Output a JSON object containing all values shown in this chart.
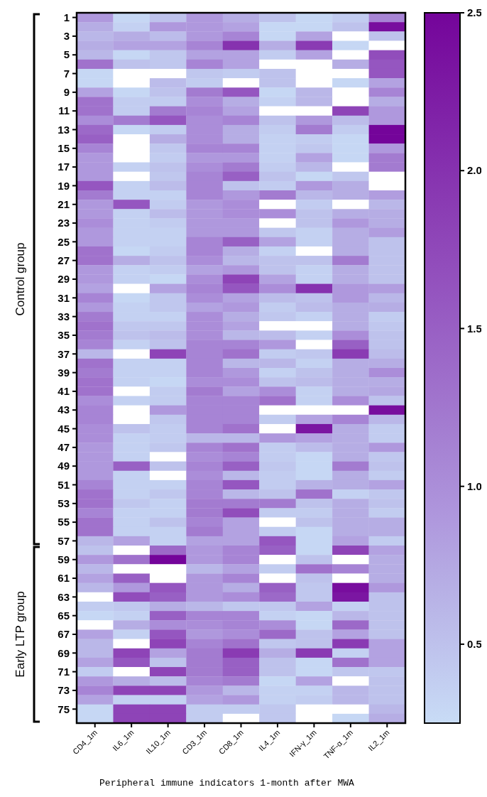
{
  "chart_data": {
    "type": "heatmap",
    "xlabel": "Peripheral immune indicators 1-month after MWA",
    "categories": [
      "CD4_1m",
      "IL6_1m",
      "IL10_1m",
      "CD3_1m",
      "CD8_1m",
      "IL4_1m",
      "IFN-γ_1m",
      "TNF-α_1m",
      "IL2_1m"
    ],
    "y_categories": [
      "1",
      null,
      "3",
      null,
      "5",
      null,
      "7",
      null,
      "9",
      null,
      "11",
      null,
      "13",
      null,
      "15",
      null,
      "17",
      null,
      "19",
      null,
      "21",
      null,
      "23",
      null,
      "25",
      null,
      "27",
      null,
      "29",
      null,
      "31",
      null,
      "33",
      null,
      "35",
      null,
      "37",
      null,
      "39",
      null,
      "41",
      null,
      "43",
      null,
      "45",
      null,
      "47",
      null,
      "49",
      null,
      "51",
      null,
      "53",
      null,
      "55",
      null,
      "57",
      null,
      "59",
      null,
      "61",
      null,
      "63",
      null,
      "65",
      null,
      "67",
      null,
      "69",
      null,
      "71",
      null,
      "73",
      null,
      "75",
      null
    ],
    "cells": [
      [
        0.9,
        0.3,
        0.5,
        0.9,
        0.7,
        0.5,
        0.3,
        0.4,
        1.1
      ],
      [
        0.7,
        0.35,
        0.9,
        0.9,
        0.8,
        0.3,
        0.3,
        0.5,
        2.4
      ],
      [
        0.6,
        0.7,
        0.55,
        0.9,
        1.1,
        0.3,
        0.8,
        null,
        0.5
      ],
      [
        0.7,
        0.8,
        0.8,
        1.1,
        2.0,
        0.7,
        1.9,
        0.3,
        null
      ],
      [
        0.6,
        0.3,
        0.45,
        0.8,
        0.8,
        0.4,
        0.8,
        null,
        1.7
      ],
      [
        1.3,
        0.5,
        0.45,
        1.1,
        0.8,
        null,
        null,
        0.7,
        1.6
      ],
      [
        0.3,
        null,
        null,
        0.45,
        0.4,
        0.5,
        null,
        null,
        1.6
      ],
      [
        0.3,
        null,
        0.55,
        0.4,
        null,
        0.5,
        null,
        0.3,
        0.8
      ],
      [
        0.8,
        0.3,
        0.5,
        1.2,
        1.6,
        0.3,
        0.6,
        null,
        1.1
      ],
      [
        1.3,
        0.4,
        0.4,
        1.0,
        0.7,
        0.35,
        0.6,
        null,
        0.7
      ],
      [
        1.3,
        0.4,
        1.2,
        1.1,
        0.8,
        null,
        null,
        1.8,
        0.9
      ],
      [
        1.0,
        1.2,
        1.6,
        1.0,
        1.1,
        0.5,
        0.9,
        0.55,
        0.9
      ],
      [
        1.4,
        0.3,
        0.4,
        1.0,
        0.7,
        0.4,
        1.2,
        0.4,
        2.5
      ],
      [
        1.5,
        null,
        0.7,
        1.0,
        0.7,
        0.35,
        0.4,
        0.3,
        2.5
      ],
      [
        1.1,
        null,
        0.45,
        1.1,
        1.1,
        0.35,
        0.45,
        0.3,
        0.9
      ],
      [
        0.9,
        null,
        0.4,
        0.9,
        0.9,
        0.35,
        0.8,
        0.3,
        1.2
      ],
      [
        0.9,
        0.35,
        0.5,
        1.0,
        1.2,
        0.4,
        0.6,
        null,
        1.2
      ],
      [
        0.9,
        null,
        0.45,
        1.1,
        1.5,
        0.5,
        0.3,
        0.45,
        null
      ],
      [
        1.6,
        0.35,
        0.55,
        1.1,
        0.5,
        0.4,
        0.9,
        0.7,
        null
      ],
      [
        1.2,
        0.35,
        0.35,
        1.1,
        0.9,
        1.2,
        0.6,
        0.7,
        0.85
      ],
      [
        0.9,
        1.6,
        0.4,
        0.9,
        1.0,
        null,
        0.4,
        null,
        0.6
      ],
      [
        0.9,
        0.35,
        0.55,
        0.9,
        1.0,
        1.0,
        0.5,
        0.7,
        0.7
      ],
      [
        1.0,
        0.35,
        0.4,
        0.9,
        0.9,
        null,
        0.5,
        0.9,
        0.7
      ],
      [
        0.9,
        0.35,
        0.35,
        0.9,
        0.9,
        0.45,
        0.35,
        0.7,
        0.85
      ],
      [
        0.9,
        0.35,
        0.35,
        1.1,
        1.5,
        0.8,
        0.35,
        0.7,
        0.5
      ],
      [
        1.3,
        0.3,
        0.4,
        1.1,
        0.7,
        0.35,
        null,
        0.7,
        0.5
      ],
      [
        1.3,
        0.7,
        0.5,
        1.0,
        0.6,
        0.5,
        0.5,
        1.2,
        0.5
      ],
      [
        0.9,
        0.35,
        0.4,
        0.8,
        0.9,
        0.5,
        0.35,
        0.7,
        0.5
      ],
      [
        0.9,
        0.35,
        0.3,
        1.0,
        1.8,
        0.8,
        0.35,
        0.7,
        0.5
      ],
      [
        0.8,
        null,
        0.8,
        1.1,
        1.6,
        1.0,
        2.0,
        0.9,
        0.85
      ],
      [
        1.1,
        0.3,
        0.45,
        1.0,
        0.8,
        0.55,
        0.5,
        0.9,
        0.6
      ],
      [
        0.9,
        0.35,
        0.45,
        0.8,
        0.9,
        0.4,
        0.55,
        0.7,
        0.7
      ],
      [
        1.2,
        0.35,
        0.35,
        1.0,
        0.7,
        0.45,
        0.35,
        0.7,
        0.4
      ],
      [
        1.3,
        0.45,
        0.45,
        1.0,
        0.8,
        null,
        null,
        0.7,
        0.45
      ],
      [
        1.2,
        0.5,
        0.55,
        1.0,
        0.6,
        0.55,
        0.35,
        1.0,
        0.5
      ],
      [
        1.1,
        0.35,
        0.5,
        1.1,
        1.1,
        0.9,
        null,
        1.5,
        0.5
      ],
      [
        0.6,
        null,
        1.8,
        1.1,
        1.3,
        0.4,
        0.45,
        1.9,
        0.55
      ],
      [
        1.3,
        0.35,
        0.35,
        1.1,
        0.6,
        0.6,
        0.35,
        0.7,
        0.7
      ],
      [
        1.2,
        0.35,
        0.35,
        1.1,
        0.9,
        0.35,
        0.5,
        0.7,
        1.0
      ],
      [
        1.3,
        0.35,
        0.3,
        1.0,
        1.0,
        0.5,
        0.55,
        0.7,
        0.7
      ],
      [
        1.3,
        null,
        0.4,
        1.2,
        0.8,
        1.0,
        0.35,
        0.7,
        0.75
      ],
      [
        1.0,
        0.35,
        0.4,
        1.1,
        1.1,
        1.3,
        0.35,
        1.0,
        0.5
      ],
      [
        1.1,
        null,
        0.9,
        1.1,
        1.1,
        null,
        null,
        null,
        2.4
      ],
      [
        1.1,
        null,
        0.45,
        1.1,
        1.1,
        0.4,
        0.8,
        1.1,
        0.6
      ],
      [
        1.0,
        0.5,
        0.4,
        1.1,
        1.3,
        null,
        2.3,
        0.7,
        0.4
      ],
      [
        1.0,
        0.35,
        0.4,
        0.6,
        0.6,
        0.9,
        0.8,
        0.7,
        0.4
      ],
      [
        0.9,
        0.35,
        0.45,
        1.1,
        1.3,
        0.4,
        0.55,
        0.7,
        0.9
      ],
      [
        0.9,
        0.35,
        null,
        1.0,
        1.1,
        0.4,
        0.3,
        0.7,
        0.45
      ],
      [
        0.9,
        1.5,
        0.5,
        1.1,
        1.5,
        0.45,
        0.3,
        1.2,
        0.5
      ],
      [
        0.9,
        0.35,
        null,
        1.0,
        0.6,
        0.4,
        0.3,
        0.7,
        0.4
      ],
      [
        1.1,
        0.35,
        0.35,
        1.1,
        1.6,
        0.4,
        0.65,
        0.7,
        0.8
      ],
      [
        1.3,
        0.35,
        0.45,
        1.1,
        0.6,
        0.5,
        1.3,
        0.35,
        0.45
      ],
      [
        1.3,
        0.45,
        0.35,
        1.2,
        1.2,
        1.2,
        0.5,
        0.7,
        0.5
      ],
      [
        1.1,
        0.35,
        0.35,
        1.2,
        1.7,
        0.4,
        0.4,
        0.7,
        0.4
      ],
      [
        1.3,
        0.35,
        0.5,
        1.1,
        0.8,
        null,
        0.5,
        0.7,
        0.7
      ],
      [
        1.3,
        0.35,
        0.35,
        1.2,
        0.8,
        0.4,
        0.3,
        0.7,
        0.7
      ],
      [
        0.6,
        0.8,
        0.35,
        0.8,
        0.8,
        1.6,
        0.3,
        0.8,
        0.4
      ],
      [
        0.5,
        null,
        1.4,
        0.9,
        1.1,
        1.5,
        0.3,
        1.8,
        0.8
      ],
      [
        0.9,
        1.3,
        2.5,
        0.9,
        1.1,
        null,
        0.5,
        null,
        0.7
      ],
      [
        0.6,
        null,
        null,
        0.6,
        0.8,
        0.4,
        1.3,
        1.1,
        0.7
      ],
      [
        0.8,
        1.5,
        null,
        0.9,
        1.1,
        null,
        0.5,
        null,
        0.7
      ],
      [
        0.6,
        0.9,
        1.6,
        0.9,
        0.7,
        1.5,
        0.45,
        2.4,
        0.9
      ],
      [
        null,
        1.7,
        1.5,
        0.9,
        1.0,
        1.4,
        0.45,
        2.3,
        0.5
      ],
      [
        0.4,
        0.45,
        0.7,
        0.6,
        0.45,
        0.45,
        0.8,
        0.35,
        0.5
      ],
      [
        0.3,
        0.35,
        1.5,
        1.1,
        1.1,
        0.35,
        0.3,
        0.6,
        0.5
      ],
      [
        null,
        0.7,
        1.0,
        1.0,
        1.1,
        1.0,
        0.3,
        1.4,
        0.5
      ],
      [
        0.8,
        0.35,
        1.6,
        0.9,
        1.0,
        1.4,
        0.5,
        0.8,
        0.5
      ],
      [
        0.6,
        null,
        1.8,
        1.1,
        1.3,
        0.45,
        0.5,
        1.9,
        0.8
      ],
      [
        0.6,
        1.8,
        0.8,
        1.2,
        1.9,
        0.7,
        1.9,
        0.35,
        0.8
      ],
      [
        0.8,
        1.6,
        0.5,
        1.2,
        1.5,
        0.5,
        0.3,
        1.3,
        0.8
      ],
      [
        0.4,
        null,
        1.8,
        1.2,
        1.5,
        0.5,
        0.3,
        0.45,
        0.45
      ],
      [
        0.9,
        0.7,
        0.55,
        1.1,
        1.2,
        0.3,
        0.8,
        null,
        0.5
      ],
      [
        1.1,
        1.8,
        1.8,
        0.9,
        0.6,
        0.35,
        0.35,
        0.6,
        0.5
      ],
      [
        0.8,
        0.35,
        0.35,
        0.8,
        0.9,
        0.35,
        0.4,
        0.6,
        0.5
      ],
      [
        0.3,
        1.8,
        1.8,
        0.4,
        0.4,
        0.45,
        null,
        null,
        0.6
      ],
      [
        0.3,
        1.8,
        1.8,
        0.4,
        null,
        0.45,
        null,
        0.3,
        0.7
      ]
    ],
    "clim": [
      0.25,
      2.5
    ],
    "cticks": [
      0.5,
      {
        "value": 1,
        "label": "1.0"
      },
      1.5,
      {
        "value": 2,
        "label": "2.0"
      },
      2.5
    ],
    "annotations": [
      "Control group",
      "Early LTP group"
    ]
  }
}
